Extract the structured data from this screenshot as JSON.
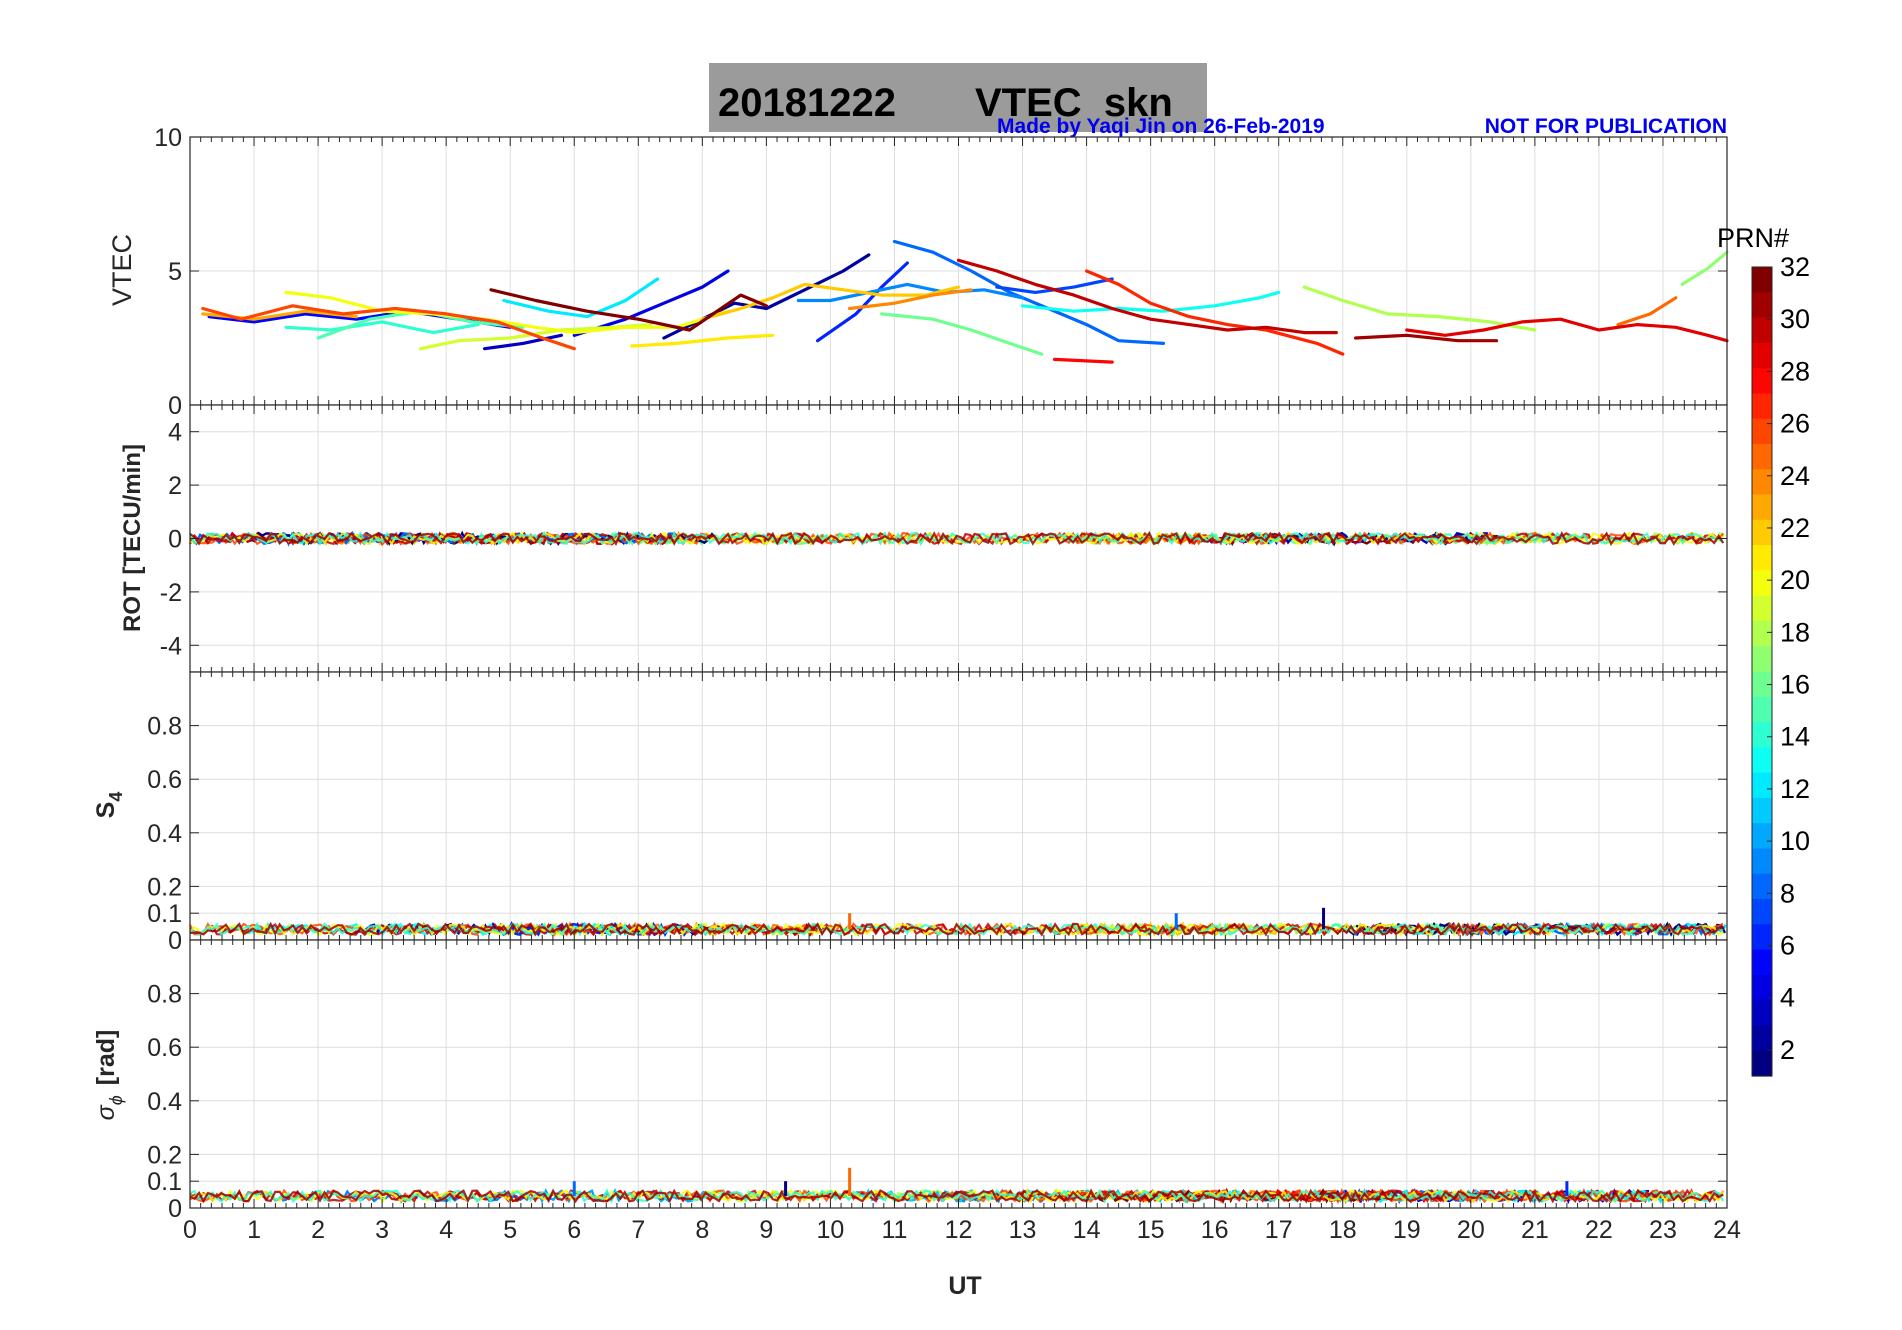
{
  "title": {
    "date": "20181222",
    "product": "VTEC  skn"
  },
  "credit": "Made by Yaqi Jin on 26-Feb-2019",
  "notice": "NOT FOR PUBLICATION",
  "colors": {
    "title_box": "#9b9b9b",
    "credit": "#0000ee",
    "grid": "#dedede",
    "axis": "#262626"
  },
  "chart_data": [
    {
      "type": "line",
      "panel": "vtec",
      "ylabel": "VTEC",
      "ylim": [
        0,
        10
      ],
      "yticks": [
        0,
        5,
        10
      ],
      "xlim": [
        0,
        24
      ],
      "series": [
        {
          "prn": 3,
          "points": [
            [
              4.6,
              2.1
            ],
            [
              5.2,
              2.3
            ],
            [
              5.8,
              2.6
            ]
          ]
        },
        {
          "prn": 5,
          "points": [
            [
              0.3,
              3.3
            ],
            [
              1.0,
              3.1
            ],
            [
              1.8,
              3.4
            ],
            [
              2.6,
              3.2
            ],
            [
              3.4,
              3.5
            ],
            [
              4.2,
              3.2
            ],
            [
              5.0,
              2.9
            ]
          ]
        },
        {
          "prn": 2,
          "points": [
            [
              7.4,
              2.5
            ],
            [
              8.0,
              3.2
            ],
            [
              8.5,
              3.8
            ],
            [
              9.0,
              3.6
            ],
            [
              9.6,
              4.3
            ],
            [
              10.2,
              5.0
            ],
            [
              10.6,
              5.6
            ]
          ]
        },
        {
          "prn": 4,
          "points": [
            [
              6.0,
              2.6
            ],
            [
              6.8,
              3.2
            ],
            [
              7.4,
              3.8
            ],
            [
              8.0,
              4.4
            ],
            [
              8.4,
              5.0
            ]
          ]
        },
        {
          "prn": 6,
          "points": [
            [
              9.8,
              2.4
            ],
            [
              10.4,
              3.4
            ],
            [
              10.8,
              4.4
            ],
            [
              11.2,
              5.3
            ]
          ]
        },
        {
          "prn": 8,
          "points": [
            [
              11.0,
              6.1
            ],
            [
              11.6,
              5.7
            ],
            [
              12.2,
              5.0
            ],
            [
              12.8,
              4.2
            ],
            [
              13.4,
              3.6
            ],
            [
              14.0,
              3.0
            ],
            [
              14.5,
              2.4
            ],
            [
              15.2,
              2.3
            ]
          ]
        },
        {
          "prn": 7,
          "points": [
            [
              12.6,
              4.4
            ],
            [
              13.2,
              4.2
            ],
            [
              13.8,
              4.4
            ],
            [
              14.4,
              4.7
            ]
          ]
        },
        {
          "prn": 9,
          "points": [
            [
              9.5,
              3.9
            ],
            [
              10.0,
              3.9
            ],
            [
              10.6,
              4.2
            ],
            [
              11.2,
              4.5
            ],
            [
              11.8,
              4.2
            ],
            [
              12.4,
              4.3
            ],
            [
              13.0,
              4.0
            ]
          ]
        },
        {
          "prn": 12,
          "points": [
            [
              4.9,
              3.9
            ],
            [
              5.6,
              3.5
            ],
            [
              6.2,
              3.3
            ],
            [
              6.8,
              3.9
            ],
            [
              7.3,
              4.7
            ]
          ]
        },
        {
          "prn": 13,
          "points": [
            [
              13.0,
              3.7
            ],
            [
              13.8,
              3.5
            ],
            [
              14.5,
              3.6
            ],
            [
              15.2,
              3.5
            ],
            [
              16.0,
              3.7
            ],
            [
              16.7,
              4.0
            ],
            [
              17.0,
              4.2
            ]
          ]
        },
        {
          "prn": 14,
          "points": [
            [
              1.5,
              2.9
            ],
            [
              2.2,
              2.8
            ],
            [
              3.0,
              3.1
            ],
            [
              3.8,
              2.7
            ],
            [
              4.5,
              3.0
            ]
          ]
        },
        {
          "prn": 15,
          "points": [
            [
              2.0,
              2.5
            ],
            [
              2.8,
              3.2
            ],
            [
              3.6,
              3.5
            ],
            [
              4.4,
              3.1
            ],
            [
              5.2,
              2.9
            ]
          ]
        },
        {
          "prn": 16,
          "points": [
            [
              10.8,
              3.4
            ],
            [
              11.6,
              3.2
            ],
            [
              12.2,
              2.8
            ],
            [
              12.8,
              2.3
            ],
            [
              13.3,
              1.9
            ]
          ]
        },
        {
          "prn": 17,
          "points": [
            [
              23.3,
              4.5
            ],
            [
              23.7,
              5.1
            ],
            [
              24.0,
              5.7
            ]
          ]
        },
        {
          "prn": 18,
          "points": [
            [
              17.4,
              4.4
            ],
            [
              18.0,
              3.9
            ],
            [
              18.7,
              3.4
            ],
            [
              19.5,
              3.3
            ],
            [
              20.3,
              3.1
            ],
            [
              21.0,
              2.8
            ]
          ]
        },
        {
          "prn": 19,
          "points": [
            [
              3.6,
              2.1
            ],
            [
              4.2,
              2.4
            ],
            [
              5.0,
              2.5
            ],
            [
              5.8,
              2.8
            ],
            [
              6.6,
              2.9
            ],
            [
              7.2,
              3.0
            ]
          ]
        },
        {
          "prn": 20,
          "points": [
            [
              1.5,
              4.2
            ],
            [
              2.2,
              4.0
            ],
            [
              3.0,
              3.5
            ],
            [
              3.8,
              3.4
            ],
            [
              4.6,
              3.2
            ],
            [
              5.4,
              2.9
            ],
            [
              6.0,
              2.7
            ],
            [
              6.8,
              2.9
            ],
            [
              7.6,
              2.9
            ],
            [
              8.4,
              3.5
            ]
          ]
        },
        {
          "prn": 21,
          "points": [
            [
              6.9,
              2.2
            ],
            [
              7.6,
              2.3
            ],
            [
              8.4,
              2.5
            ],
            [
              9.1,
              2.6
            ]
          ]
        },
        {
          "prn": 22,
          "points": [
            [
              8.0,
              3.2
            ],
            [
              8.6,
              3.6
            ],
            [
              9.1,
              4.0
            ],
            [
              9.6,
              4.5
            ],
            [
              10.2,
              4.3
            ],
            [
              10.8,
              4.1
            ],
            [
              11.5,
              4.1
            ],
            [
              12.0,
              4.4
            ]
          ]
        },
        {
          "prn": 23,
          "points": [
            [
              0.2,
              3.4
            ],
            [
              1.0,
              3.2
            ],
            [
              1.8,
              3.5
            ],
            [
              2.6,
              3.3
            ]
          ]
        },
        {
          "prn": 24,
          "points": [
            [
              10.3,
              3.6
            ],
            [
              11.0,
              3.8
            ],
            [
              11.6,
              4.1
            ],
            [
              12.2,
              4.3
            ]
          ]
        },
        {
          "prn": 25,
          "points": [
            [
              22.3,
              3.0
            ],
            [
              22.8,
              3.4
            ],
            [
              23.2,
              4.0
            ]
          ]
        },
        {
          "prn": 26,
          "points": [
            [
              0.2,
              3.6
            ],
            [
              0.8,
              3.2
            ],
            [
              1.6,
              3.7
            ],
            [
              2.4,
              3.4
            ],
            [
              3.2,
              3.6
            ],
            [
              4.0,
              3.4
            ],
            [
              4.8,
              3.1
            ],
            [
              5.5,
              2.5
            ],
            [
              6.0,
              2.1
            ]
          ]
        },
        {
          "prn": 27,
          "points": [
            [
              14.0,
              5.0
            ],
            [
              14.5,
              4.5
            ],
            [
              15.0,
              3.8
            ],
            [
              15.6,
              3.3
            ],
            [
              16.2,
              3.0
            ],
            [
              16.8,
              2.8
            ],
            [
              17.6,
              2.3
            ],
            [
              18.0,
              1.9
            ]
          ]
        },
        {
          "prn": 28,
          "points": [
            [
              13.5,
              1.7
            ],
            [
              14.4,
              1.6
            ]
          ]
        },
        {
          "prn": 29,
          "points": [
            [
              19.0,
              2.8
            ],
            [
              19.6,
              2.6
            ],
            [
              20.2,
              2.8
            ],
            [
              20.8,
              3.1
            ],
            [
              21.4,
              3.2
            ],
            [
              22.0,
              2.8
            ],
            [
              22.6,
              3.0
            ],
            [
              23.2,
              2.9
            ],
            [
              23.7,
              2.6
            ],
            [
              24.0,
              2.4
            ]
          ]
        },
        {
          "prn": 30,
          "points": [
            [
              12.0,
              5.4
            ],
            [
              12.6,
              5.0
            ],
            [
              13.2,
              4.5
            ],
            [
              13.8,
              4.1
            ],
            [
              14.4,
              3.6
            ],
            [
              15.0,
              3.2
            ],
            [
              15.6,
              3.0
            ],
            [
              16.2,
              2.8
            ],
            [
              16.8,
              2.9
            ],
            [
              17.4,
              2.7
            ],
            [
              17.9,
              2.7
            ]
          ]
        },
        {
          "prn": 31,
          "points": [
            [
              18.2,
              2.5
            ],
            [
              19.0,
              2.6
            ],
            [
              19.8,
              2.4
            ],
            [
              20.4,
              2.4
            ]
          ]
        },
        {
          "prn": 32,
          "points": [
            [
              4.7,
              4.3
            ],
            [
              5.4,
              3.9
            ],
            [
              6.2,
              3.5
            ],
            [
              7.0,
              3.2
            ],
            [
              7.8,
              2.8
            ],
            [
              8.6,
              4.1
            ],
            [
              9.0,
              3.7
            ]
          ]
        }
      ]
    },
    {
      "type": "line",
      "panel": "rot",
      "ylabel": "ROT [TECU/min]",
      "ylim": [
        -5,
        5
      ],
      "yticks": [
        -4,
        -2,
        0,
        2,
        4
      ],
      "xlim": [
        0,
        24
      ],
      "baseline": 0,
      "band_amplitude": 0.2
    },
    {
      "type": "line",
      "panel": "s4",
      "ylabel": "S",
      "ylabel_sub": "4",
      "ylim": [
        0,
        1
      ],
      "yticks": [
        0,
        0.1,
        0.2,
        0.4,
        0.6,
        0.8
      ],
      "xlim": [
        0,
        24
      ],
      "baseline": 0.04,
      "band_amplitude": 0.02,
      "spikes": [
        [
          10.3,
          0.1
        ],
        [
          15.4,
          0.1
        ],
        [
          17.7,
          0.12
        ]
      ]
    },
    {
      "type": "line",
      "panel": "sigma_phi",
      "ylabel_symbol": "σ",
      "ylabel_sub": "ϕ",
      "ylabel_unit": "[rad]",
      "ylim": [
        0,
        1
      ],
      "yticks": [
        0,
        0.1,
        0.2,
        0.4,
        0.6,
        0.8
      ],
      "xlim": [
        0,
        24
      ],
      "xlabel": "UT",
      "xticks": [
        0,
        1,
        2,
        3,
        4,
        5,
        6,
        7,
        8,
        9,
        10,
        11,
        12,
        13,
        14,
        15,
        16,
        17,
        18,
        19,
        20,
        21,
        22,
        23,
        24
      ],
      "baseline": 0.045,
      "band_amplitude": 0.02,
      "spikes": [
        [
          10.3,
          0.15
        ],
        [
          6.0,
          0.1
        ],
        [
          9.3,
          0.1
        ],
        [
          21.5,
          0.1
        ]
      ]
    }
  ],
  "colorbar": {
    "label": "PRN#",
    "range": [
      1,
      32
    ],
    "ticks": [
      2,
      4,
      6,
      8,
      10,
      12,
      14,
      16,
      18,
      20,
      22,
      24,
      26,
      28,
      30,
      32
    ],
    "colormap": "jet"
  }
}
